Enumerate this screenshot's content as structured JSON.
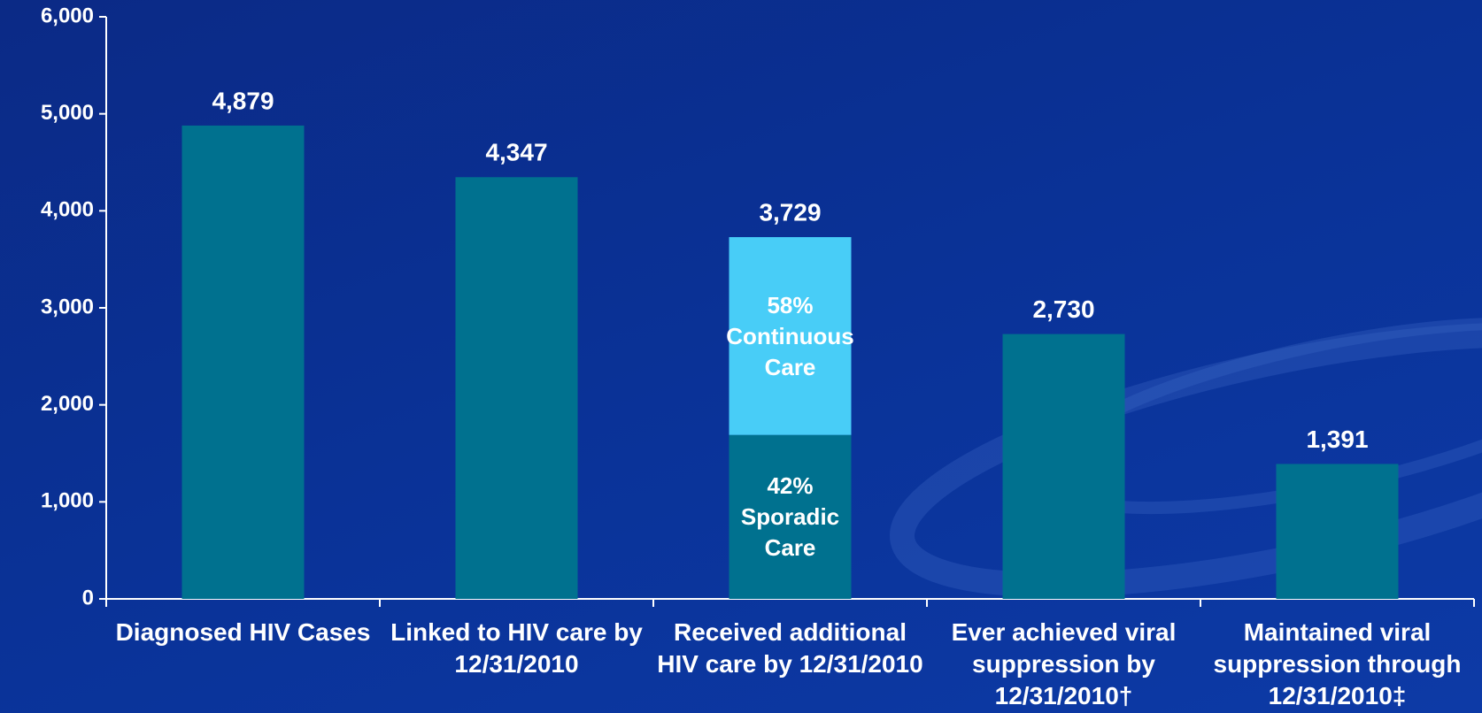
{
  "chart_data": {
    "type": "bar",
    "categories": [
      "Diagnosed HIV Cases",
      "Linked to HIV care by 12/31/2010",
      "Received additional HIV care by 12/31/2010",
      "Ever achieved viral suppression by 12/31/2010†",
      "Maintained viral suppression through 12/31/2010‡"
    ],
    "values": [
      4879,
      4347,
      3729,
      2730,
      1391
    ],
    "value_labels": [
      "4,879",
      "4,347",
      "3,729",
      "2,730",
      "1,391"
    ],
    "color": "#00718f",
    "stacked_category": 2,
    "segments": [
      {
        "share": "42%",
        "name": "Sporadic Care",
        "value": 1690,
        "color": "#00718f"
      },
      {
        "share": "58%",
        "name": "Continuous Care",
        "value": 2039,
        "color": "#48cdf7"
      }
    ],
    "ylim": [
      0,
      6000
    ],
    "yticks": [
      0,
      {
        "value": 1000,
        "label": "1,000"
      },
      {
        "value": 2000,
        "label": "2,000"
      },
      {
        "value": 3000,
        "label": "3,000"
      },
      {
        "value": 4000,
        "label": "4,000"
      },
      {
        "value": 5000,
        "label": "5,000"
      },
      {
        "value": 6000,
        "label": "6,000"
      }
    ]
  }
}
